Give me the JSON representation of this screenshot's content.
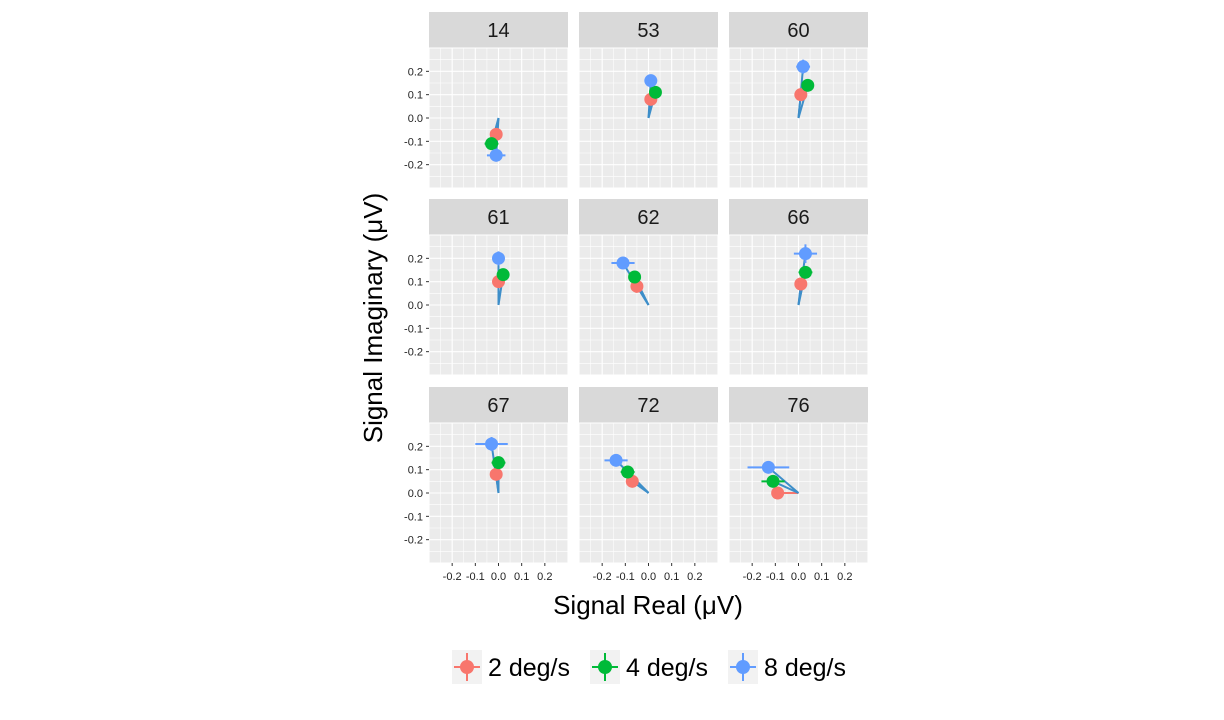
{
  "chart_data": {
    "type": "scatter",
    "layout": "facet_wrap 3x3",
    "xlabel": "Signal Real (μV)",
    "ylabel": "Signal Imaginary (μV)",
    "xlim": [
      -0.3,
      0.3
    ],
    "ylim": [
      -0.3,
      0.3
    ],
    "x_ticks": [
      -0.2,
      -0.1,
      0.0,
      0.1,
      0.2
    ],
    "x_tick_labels": [
      "-0.2",
      "-0.1",
      "0.0",
      "0.1",
      "0.2"
    ],
    "y_ticks": [
      -0.2,
      -0.1,
      0.0,
      0.1,
      0.2
    ],
    "y_tick_labels": [
      "-0.2",
      "-0.1",
      "0.0",
      "0.1",
      "0.2"
    ],
    "grid": true,
    "legend": {
      "position": "bottom"
    },
    "series": [
      {
        "name": "2 deg/s",
        "color": "#F8766D"
      },
      {
        "name": "4 deg/s",
        "color": "#00BA38"
      },
      {
        "name": "8 deg/s",
        "color": "#619CFF"
      }
    ],
    "vector_color": "#3d8ec9",
    "panels": [
      {
        "label": "14",
        "points": [
          {
            "series": "2 deg/s",
            "x": -0.01,
            "y": -0.07,
            "xerr": 0.0,
            "yerr": 0.0
          },
          {
            "series": "4 deg/s",
            "x": -0.03,
            "y": -0.11,
            "xerr": 0.03,
            "yerr": 0.0
          },
          {
            "series": "8 deg/s",
            "x": -0.01,
            "y": -0.16,
            "xerr": 0.04,
            "yerr": 0.0
          }
        ]
      },
      {
        "label": "53",
        "points": [
          {
            "series": "2 deg/s",
            "x": 0.01,
            "y": 0.08,
            "xerr": 0.0,
            "yerr": 0.0
          },
          {
            "series": "4 deg/s",
            "x": 0.03,
            "y": 0.11,
            "xerr": 0.0,
            "yerr": 0.0
          },
          {
            "series": "8 deg/s",
            "x": 0.01,
            "y": 0.16,
            "xerr": 0.0,
            "yerr": 0.0
          }
        ]
      },
      {
        "label": "60",
        "points": [
          {
            "series": "2 deg/s",
            "x": 0.01,
            "y": 0.1,
            "xerr": 0.0,
            "yerr": 0.0
          },
          {
            "series": "4 deg/s",
            "x": 0.04,
            "y": 0.14,
            "xerr": 0.0,
            "yerr": 0.0
          },
          {
            "series": "8 deg/s",
            "x": 0.02,
            "y": 0.22,
            "xerr": 0.03,
            "yerr": 0.03
          }
        ]
      },
      {
        "label": "61",
        "points": [
          {
            "series": "2 deg/s",
            "x": 0.0,
            "y": 0.1,
            "xerr": 0.0,
            "yerr": 0.0
          },
          {
            "series": "4 deg/s",
            "x": 0.02,
            "y": 0.13,
            "xerr": 0.0,
            "yerr": 0.0
          },
          {
            "series": "8 deg/s",
            "x": 0.0,
            "y": 0.2,
            "xerr": 0.0,
            "yerr": 0.03
          }
        ]
      },
      {
        "label": "62",
        "points": [
          {
            "series": "2 deg/s",
            "x": -0.05,
            "y": 0.08,
            "xerr": 0.0,
            "yerr": 0.0
          },
          {
            "series": "4 deg/s",
            "x": -0.06,
            "y": 0.12,
            "xerr": 0.02,
            "yerr": 0.0
          },
          {
            "series": "8 deg/s",
            "x": -0.11,
            "y": 0.18,
            "xerr": 0.05,
            "yerr": 0.02
          }
        ]
      },
      {
        "label": "66",
        "points": [
          {
            "series": "2 deg/s",
            "x": 0.01,
            "y": 0.09,
            "xerr": 0.0,
            "yerr": 0.0
          },
          {
            "series": "4 deg/s",
            "x": 0.03,
            "y": 0.14,
            "xerr": 0.03,
            "yerr": 0.0
          },
          {
            "series": "8 deg/s",
            "x": 0.03,
            "y": 0.22,
            "xerr": 0.05,
            "yerr": 0.04
          }
        ]
      },
      {
        "label": "67",
        "points": [
          {
            "series": "2 deg/s",
            "x": -0.01,
            "y": 0.08,
            "xerr": 0.0,
            "yerr": 0.0
          },
          {
            "series": "4 deg/s",
            "x": 0.0,
            "y": 0.13,
            "xerr": 0.03,
            "yerr": 0.0
          },
          {
            "series": "8 deg/s",
            "x": -0.03,
            "y": 0.21,
            "xerr": 0.07,
            "yerr": 0.03
          }
        ]
      },
      {
        "label": "72",
        "points": [
          {
            "series": "2 deg/s",
            "x": -0.07,
            "y": 0.05,
            "xerr": 0.0,
            "yerr": 0.0
          },
          {
            "series": "4 deg/s",
            "x": -0.09,
            "y": 0.09,
            "xerr": 0.03,
            "yerr": 0.0
          },
          {
            "series": "8 deg/s",
            "x": -0.14,
            "y": 0.14,
            "xerr": 0.05,
            "yerr": 0.0
          }
        ]
      },
      {
        "label": "76",
        "points": [
          {
            "series": "2 deg/s",
            "x": -0.09,
            "y": 0.0,
            "xerr": 0.0,
            "yerr": 0.0
          },
          {
            "series": "4 deg/s",
            "x": -0.11,
            "y": 0.05,
            "xerr": 0.05,
            "yerr": 0.0
          },
          {
            "series": "8 deg/s",
            "x": -0.13,
            "y": 0.11,
            "xerr": 0.09,
            "yerr": 0.0
          }
        ]
      }
    ]
  }
}
